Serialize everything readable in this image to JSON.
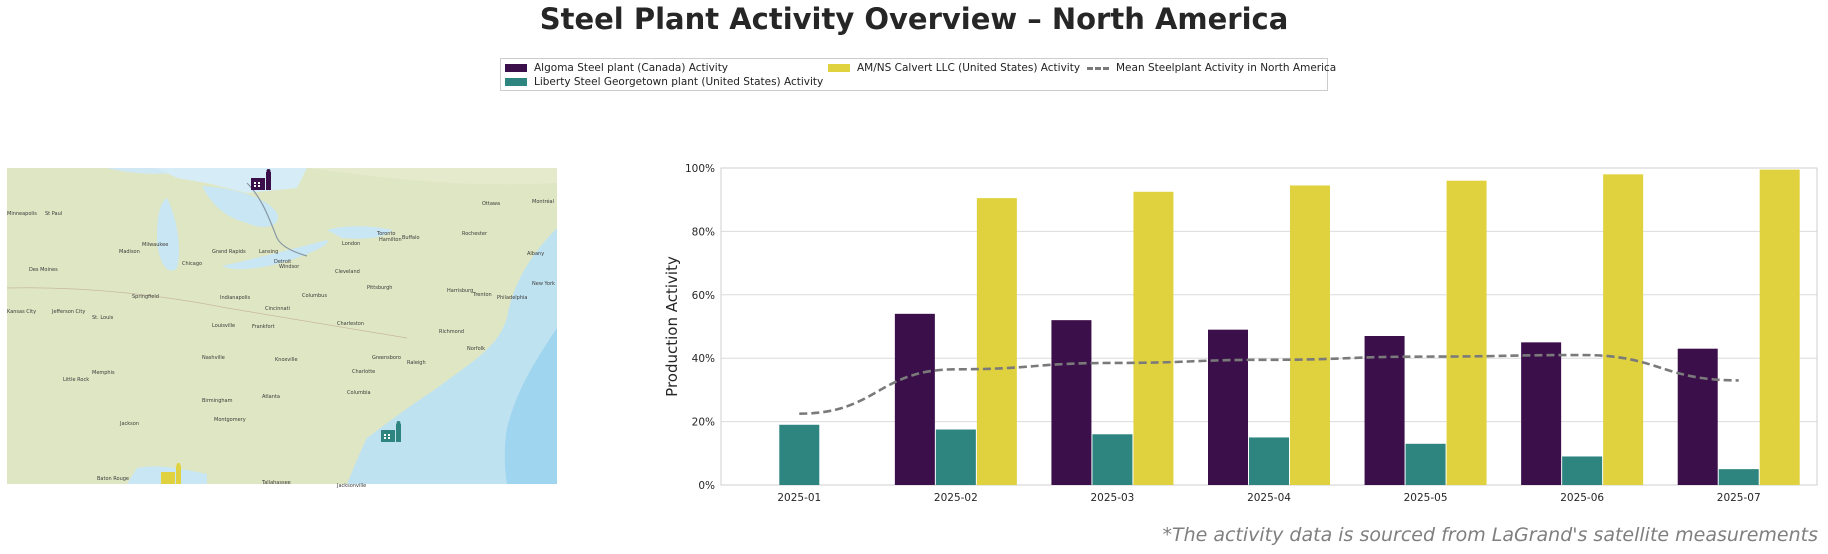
{
  "title": "Steel Plant Activity Overview – North America",
  "footnote": "*The activity data is sourced from LaGrand's satellite measurements",
  "legend": {
    "algoma": "Algoma Steel plant (Canada) Activity",
    "liberty": "Liberty Steel Georgetown plant (United States) Activity",
    "amns": "AM/NS Calvert LLC (United States) Activity",
    "mean": "Mean Steelplant Activity in North America"
  },
  "colors": {
    "algoma": "#3b0f4a",
    "liberty": "#2e8580",
    "amns": "#e0d23f",
    "mean": "#7a7a7a",
    "grid": "#dcdcdc"
  },
  "map": {
    "labels": [
      "Minneapolis",
      "St Paul",
      "Ottawa",
      "Montréal",
      "Toronto",
      "Milwaukee",
      "Madison",
      "Grand Rapids",
      "Lansing",
      "Detroit",
      "Windsor",
      "London",
      "Hamilton",
      "Buffalo",
      "Rochester",
      "Albany",
      "Chicago",
      "Des Moines",
      "Cleveland",
      "New York",
      "Pittsburgh",
      "Harrisburg",
      "Trenton",
      "Philadelphia",
      "Columbus",
      "Indianapolis",
      "Springfield",
      "Kansas City",
      "Jefferson City",
      "St. Louis",
      "Cincinnati",
      "Louisville",
      "Frankfort",
      "Charleston",
      "Richmond",
      "Norfolk",
      "Nashville",
      "Knoxville",
      "Greensboro",
      "Raleigh",
      "Charlotte",
      "Memphis",
      "Little Rock",
      "Birmingham",
      "Atlanta",
      "Columbia",
      "Jackson",
      "Montgomery",
      "Baton Rouge",
      "Tallahassee",
      "Jacksonville"
    ],
    "plant_icons": [
      "factory-icon-algoma",
      "factory-icon-liberty",
      "factory-icon-amns"
    ]
  },
  "chart_data": {
    "type": "bar",
    "categories": [
      "2025-01",
      "2025-02",
      "2025-03",
      "2025-04",
      "2025-05",
      "2025-06",
      "2025-07"
    ],
    "series": [
      {
        "name": "Algoma Steel plant (Canada) Activity",
        "values": [
          null,
          54,
          52,
          49,
          47,
          45,
          43
        ]
      },
      {
        "name": "Liberty Steel Georgetown plant (United States) Activity",
        "values": [
          19,
          17.5,
          16,
          15,
          13,
          9,
          5
        ]
      },
      {
        "name": "AM/NS Calvert LLC (United States) Activity",
        "values": [
          null,
          90.5,
          92.5,
          94.5,
          96,
          98,
          99.5
        ]
      }
    ],
    "line_series": {
      "name": "Mean Steelplant Activity in North America",
      "type": "line",
      "style": "dashed",
      "values": [
        22.5,
        36.5,
        38.5,
        39.5,
        40.5,
        41,
        33
      ]
    },
    "ylabel": "Production Activity",
    "xlabel": "",
    "ylim": [
      0,
      100
    ],
    "yticks": [
      "0%",
      "20%",
      "40%",
      "60%",
      "80%",
      "100%"
    ],
    "grid": true,
    "legend_position": "top-center"
  }
}
